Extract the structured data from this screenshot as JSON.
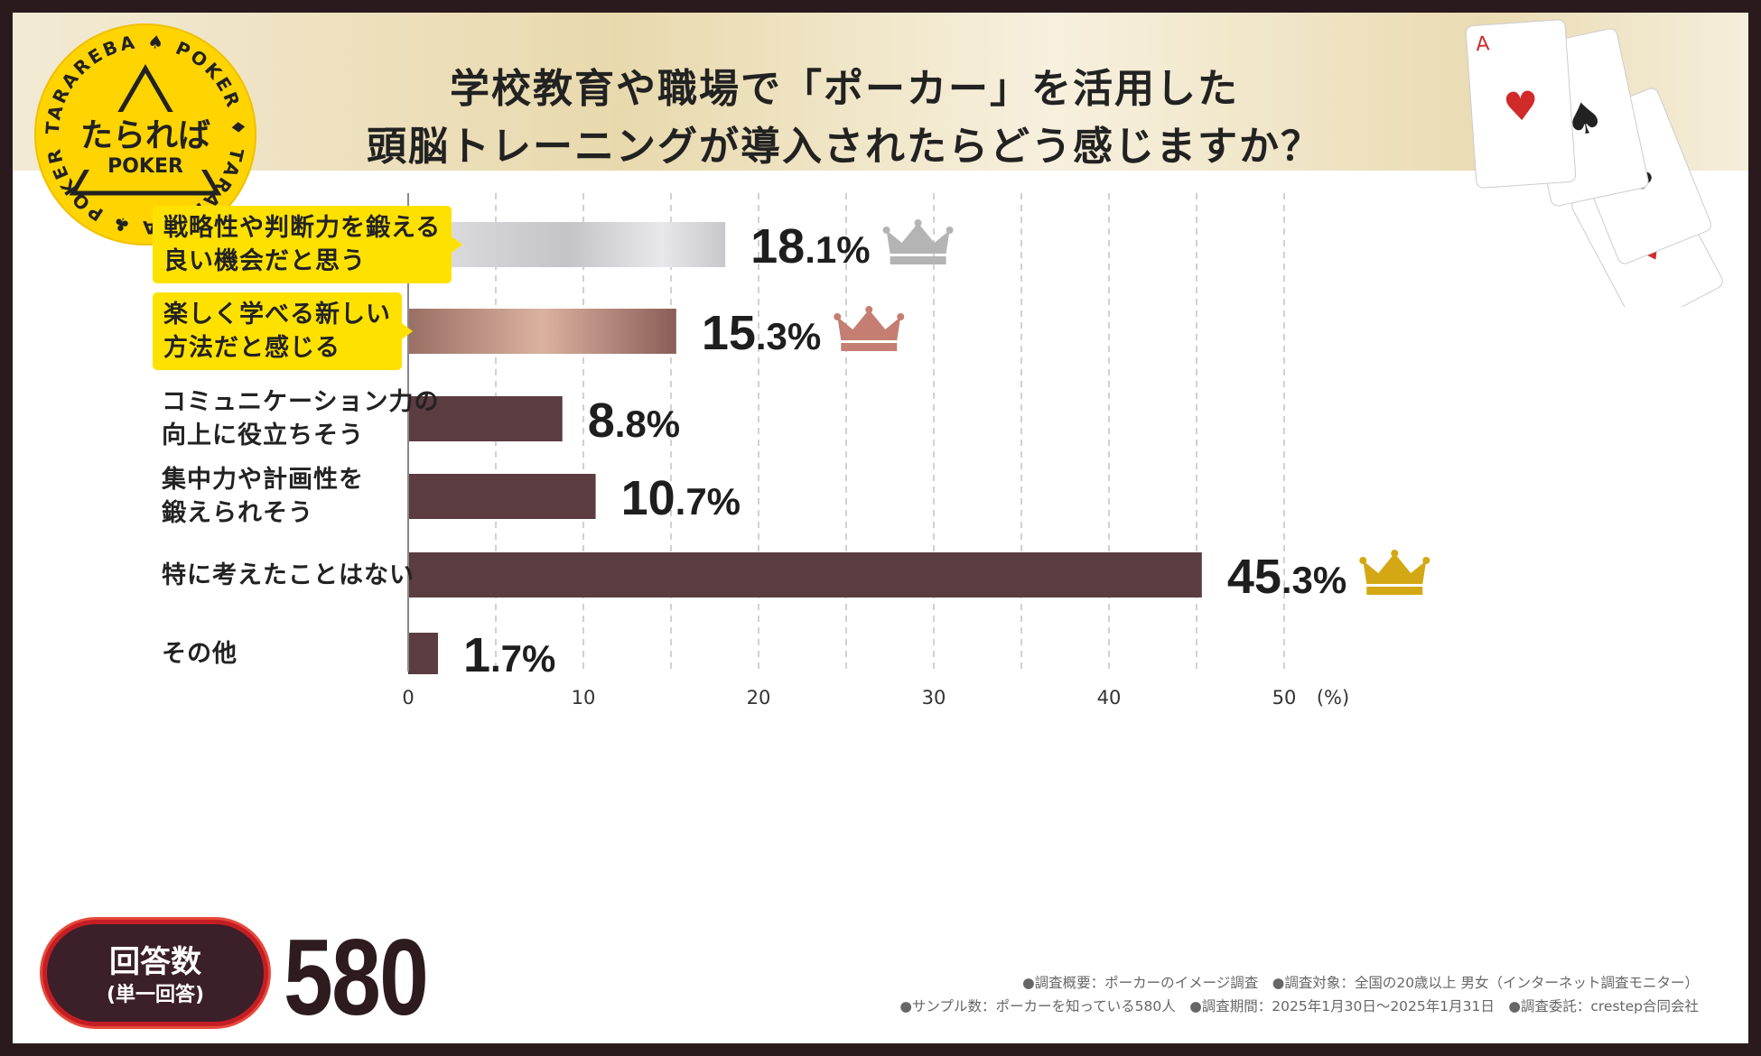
{
  "header": {
    "title_line1": "学校教育や職場で「ポーカー」を活用した",
    "title_line2": "頭脳トレーニングが導入されたらどう感じますか？"
  },
  "logo": {
    "name": "たらればPOKER",
    "ring_text": "TARAREBA ♠ POKER ♦ TARAREBA ♣ POKER ♥"
  },
  "chart_data": {
    "type": "bar",
    "orientation": "horizontal",
    "categories": [
      "戦略性や判断力を鍛える\n良い機会だと思う",
      "楽しく学べる新しい\n方法だと感じる",
      "コミュニケーション力の\n向上に役立ちそう",
      "集中力や計画性を\n鍛えられそう",
      "特に考えたことはない",
      "その他"
    ],
    "values": [
      18.1,
      15.3,
      8.8,
      10.7,
      45.3,
      1.7
    ],
    "value_labels": [
      "18.1%",
      "15.3%",
      "8.8%",
      "10.7%",
      "45.3%",
      "1.7%"
    ],
    "highlighted": [
      true,
      true,
      false,
      false,
      false,
      false
    ],
    "crowns": [
      {
        "index": 4,
        "rank": "gold",
        "color": "#d4a814"
      },
      {
        "index": 0,
        "rank": "silver",
        "color": "#b4b4b4"
      },
      {
        "index": 1,
        "rank": "bronze",
        "color": "#c47f72"
      }
    ],
    "xlim": [
      0,
      50
    ],
    "xticks": [
      "0",
      "10",
      "20",
      "30",
      "40",
      "50"
    ],
    "xunit": "(%)",
    "grid": true,
    "colors": {
      "silver": "#c8c8cc",
      "bronze": "#b88878",
      "default": "#5b3c40",
      "highlight_label": "#ffe100"
    }
  },
  "respondents": {
    "label": "回答数",
    "sublabel": "(単一回答)",
    "count": "580"
  },
  "notes": {
    "line1": "●調査概要：ポーカーのイメージ調査　●調査対象：全国の20歳以上 男女（インターネット調査モニター）",
    "line2": "●サンプル数：ポーカーを知っている580人　●調査期間：2025年1月30日〜2025年1月31日　●調査委託：crestep合同会社"
  }
}
